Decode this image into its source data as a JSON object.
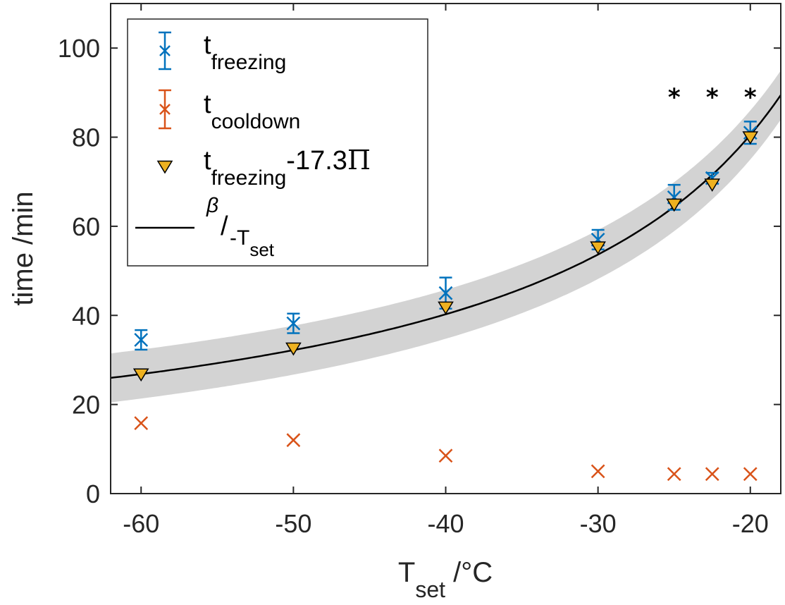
{
  "chart_data": {
    "type": "scatter",
    "xlabel": {
      "main": "T",
      "sub": "set",
      "unit": " /°C"
    },
    "ylabel": "time /min",
    "xlim": [
      -62,
      -18
    ],
    "ylim": [
      0,
      110
    ],
    "xticks": [
      -60,
      -50,
      -40,
      -30,
      -20
    ],
    "yticks": [
      0,
      20,
      40,
      60,
      80,
      100
    ],
    "xtick_labels": [
      "-60",
      "-50",
      "-40",
      "-30",
      "-20"
    ],
    "ytick_labels": [
      "0",
      "20",
      "40",
      "60",
      "80",
      "100"
    ],
    "legend_position": "top-left",
    "colors": {
      "freezing": "#0072BD",
      "cooldown": "#D95319",
      "corrected": "#EDB120",
      "fit": "#000000",
      "band": "#d3d3d3",
      "axis": "#262626"
    },
    "series": [
      {
        "name": "t_freezing",
        "marker": "x-errorbar",
        "x": [
          -60,
          -50,
          -40,
          -30,
          -25,
          -22.5,
          -20
        ],
        "y": [
          34.5,
          38.2,
          45.0,
          57.0,
          66.5,
          70.8,
          81.0
        ],
        "err": [
          2.2,
          2.2,
          3.5,
          2.2,
          2.8,
          1.2,
          2.5
        ]
      },
      {
        "name": "t_cooldown",
        "marker": "x",
        "x": [
          -60,
          -50,
          -40,
          -30,
          -25,
          -22.5,
          -20
        ],
        "y": [
          15.8,
          12.0,
          8.5,
          5.0,
          4.4,
          4.4,
          4.4
        ]
      },
      {
        "name": "t_freezing-17.3Π",
        "marker": "triangle-down",
        "x": [
          -60,
          -50,
          -40,
          -30,
          -25,
          -22.5,
          -20
        ],
        "y": [
          26.8,
          32.6,
          41.8,
          55.3,
          64.9,
          69.4,
          80.0
        ]
      },
      {
        "name": "β/-T_set",
        "type": "line",
        "beta": 1610,
        "band_halfwidth": 5.5
      }
    ],
    "annotations": [
      {
        "text": "*",
        "x": -25,
        "y": 90
      },
      {
        "text": "*",
        "x": -22.5,
        "y": 90
      },
      {
        "text": "*",
        "x": -20,
        "y": 90
      }
    ],
    "legend": [
      {
        "main": "t",
        "sub": "freezing",
        "suffix": ""
      },
      {
        "main": "t",
        "sub": "cooldown",
        "suffix": ""
      },
      {
        "main": "t",
        "sub": "freezing",
        "suffix": "-17.3",
        "symbol": "Π"
      },
      {
        "sup": "β",
        "main": "/",
        "sub2": "-T",
        "sub2b": "set"
      }
    ]
  }
}
